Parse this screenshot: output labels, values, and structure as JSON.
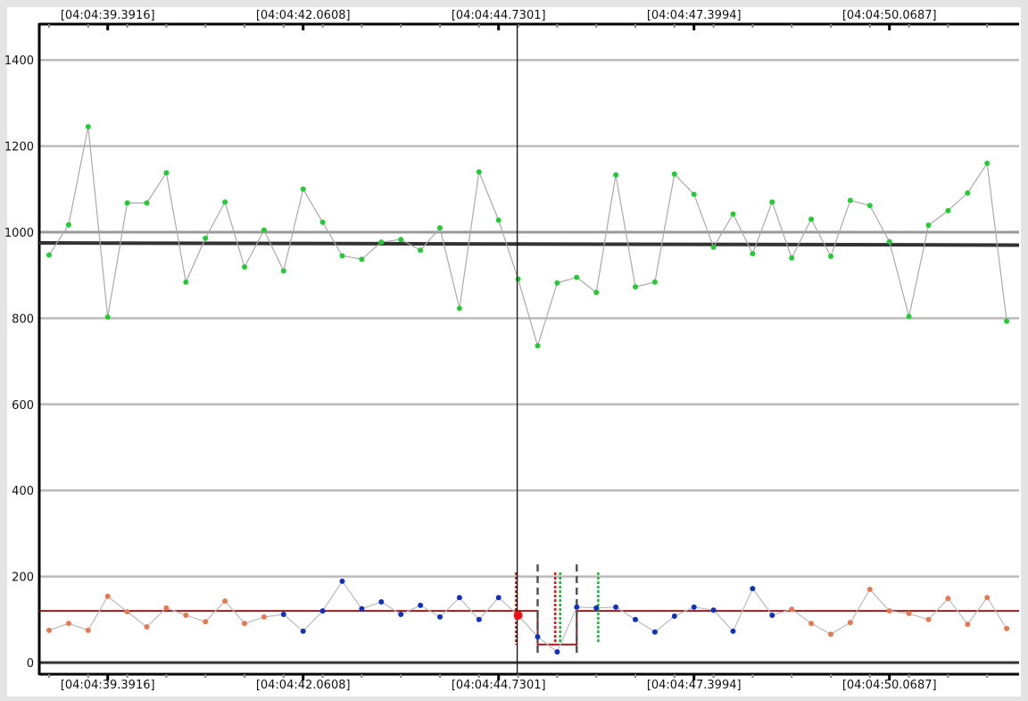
{
  "chart_data": {
    "type": "line",
    "title": "",
    "xlabel": "",
    "ylabel": "",
    "ylim": [
      0,
      1480
    ],
    "y_ticks": [
      0,
      200,
      400,
      600,
      800,
      1000,
      1200,
      1400
    ],
    "grid": true,
    "x_tick_labels": [
      {
        "index": 3,
        "label": "[04:04:39.3916]"
      },
      {
        "index": 13,
        "label": "[04:04:42.0608]"
      },
      {
        "index": 23,
        "label": "[04:04:44.7301]"
      },
      {
        "index": 33,
        "label": "[04:04:47.3994]"
      },
      {
        "index": 43,
        "label": "[04:04:50.0687]"
      }
    ],
    "series": [
      {
        "color": "#22cc33",
        "values": [
          947,
          1017,
          1245,
          803,
          1068,
          1068,
          1138,
          884,
          986,
          1070,
          919,
          1005,
          910,
          1100,
          1023,
          945,
          937,
          977,
          983,
          958,
          1010,
          823,
          1140,
          1028,
          891,
          736,
          882,
          895,
          860,
          1133,
          873,
          884,
          1135,
          1088,
          965,
          1042,
          950,
          1070,
          940,
          1030,
          944,
          1074,
          1062,
          978,
          804,
          1016,
          1050,
          1091,
          1160,
          793
        ]
      },
      {
        "point_colors": {
          "orange": "#e8784f",
          "blue": "#1030c0",
          "red": "#ee1111"
        },
        "color_ranges": [
          {
            "from": 0,
            "to": 11,
            "color": "orange"
          },
          {
            "from": 12,
            "to": 23,
            "color": "blue"
          },
          {
            "from": 24,
            "to": 24,
            "color": "red"
          },
          {
            "from": 25,
            "to": 37,
            "color": "blue"
          },
          {
            "from": 38,
            "to": 49,
            "color": "orange"
          }
        ],
        "values": [
          75,
          91,
          75,
          154,
          118,
          83,
          127,
          110,
          95,
          143,
          91,
          106,
          112,
          73,
          120,
          189,
          125,
          141,
          112,
          133,
          106,
          151,
          100,
          151,
          110,
          60,
          25,
          129,
          127,
          129,
          100,
          71,
          108,
          129,
          122,
          73,
          172,
          110,
          124,
          91,
          66,
          93,
          170,
          120,
          114,
          100,
          149,
          89,
          151,
          79
        ]
      }
    ],
    "reference_lines": {
      "mean_upper": {
        "start": 975,
        "end": 970,
        "color": "#333333"
      },
      "mean_lower": {
        "value": 120,
        "color": "#8b2020"
      },
      "step": {
        "from_index": 25,
        "to_index": 27,
        "value": 42,
        "color": "#6b2020"
      }
    },
    "cursor_index": 24,
    "markers": [
      {
        "index": 23.9,
        "color": "#cc1111",
        "style": "dotted"
      },
      {
        "index": 25,
        "color": "#555555",
        "style": "dashed"
      },
      {
        "index": 25.9,
        "color": "#ee1111",
        "style": "dotted"
      },
      {
        "index": 26.15,
        "color": "#11bb33",
        "style": "dotted"
      },
      {
        "index": 27,
        "color": "#555555",
        "style": "dashed"
      },
      {
        "index": 28.1,
        "color": "#11bb33",
        "style": "dotted"
      }
    ]
  }
}
